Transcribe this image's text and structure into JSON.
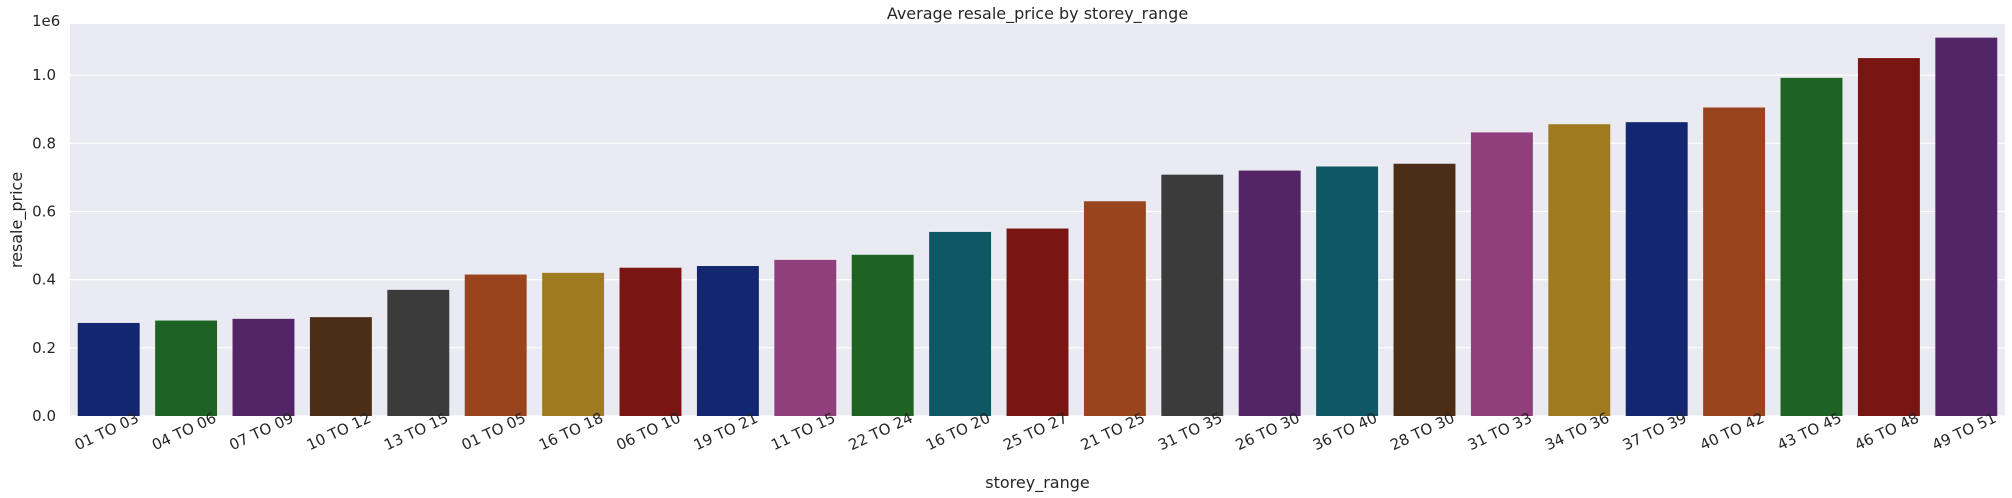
{
  "chart_data": {
    "type": "bar",
    "title": "Average resale_price by storey_range",
    "xlabel": "storey_range",
    "ylabel": "resale_price",
    "y_offset_label": "1e6",
    "ylim": [
      0,
      1.15
    ],
    "y_ticks": [
      0.0,
      0.2,
      0.4,
      0.6,
      0.8,
      1.0
    ],
    "y_tick_labels": [
      "0.0",
      "0.2",
      "0.4",
      "0.6",
      "0.8",
      "1.0"
    ],
    "grid": true,
    "categories": [
      "01 TO 03",
      "04 TO 06",
      "07 TO 09",
      "10 TO 12",
      "13 TO 15",
      "01 TO 05",
      "16 TO 18",
      "06 TO 10",
      "19 TO 21",
      "11 TO 15",
      "22 TO 24",
      "16 TO 20",
      "25 TO 27",
      "21 TO 25",
      "31 TO 35",
      "26 TO 30",
      "36 TO 40",
      "28 TO 30",
      "31 TO 33",
      "34 TO 36",
      "37 TO 39",
      "40 TO 42",
      "43 TO 45",
      "46 TO 48",
      "49 TO 51"
    ],
    "values": [
      0.273,
      0.28,
      0.285,
      0.29,
      0.37,
      0.415,
      0.42,
      0.435,
      0.44,
      0.458,
      0.473,
      0.54,
      0.55,
      0.63,
      0.708,
      0.72,
      0.732,
      0.74,
      0.832,
      0.856,
      0.862,
      0.905,
      0.992,
      1.05,
      1.11
    ],
    "colors": [
      "#12276f",
      "#1e6323",
      "#532566",
      "#4c2e16",
      "#3b3b3b",
      "#9a441e",
      "#9f7a1f",
      "#791613",
      "#12276f",
      "#913f7c",
      "#1e6323",
      "#0e5866",
      "#791613",
      "#9a441e",
      "#3b3b3b",
      "#532566",
      "#0e5866",
      "#4c2e16",
      "#913f7c",
      "#9f7a1f",
      "#12276f",
      "#9a441e",
      "#1e6323",
      "#791613",
      "#532566"
    ],
    "background_color": "#eaeaf2",
    "grid_color": "#ffffff"
  }
}
